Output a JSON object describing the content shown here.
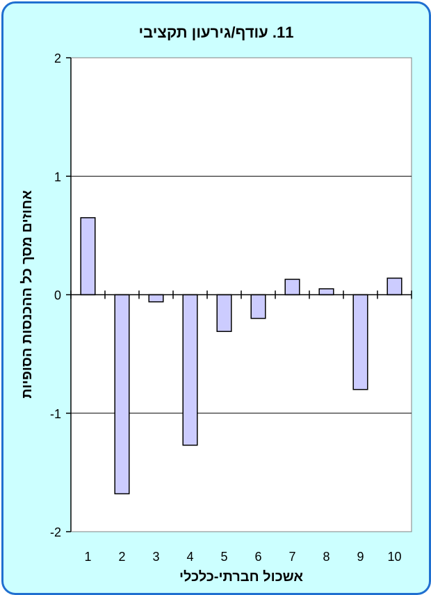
{
  "chart_data": {
    "type": "bar",
    "title": "11. עודף/גירעון תקציבי",
    "xlabel": "אשכול חברתי-כלכלי",
    "ylabel": "אחוזים מסך כל ההכנסות הסופיות",
    "categories": [
      "1",
      "2",
      "3",
      "4",
      "5",
      "6",
      "7",
      "8",
      "9",
      "10"
    ],
    "values": [
      0.65,
      -1.68,
      -0.06,
      -1.27,
      -0.31,
      -0.2,
      0.13,
      0.05,
      -0.8,
      0.14
    ],
    "ylim": [
      -2,
      2
    ],
    "yticks": [
      "2",
      "1",
      "0",
      "-1",
      "-2"
    ],
    "grid": true,
    "bar_color": "#ccccff",
    "plot_background": "#ffffff",
    "frame_background": "#ccffff",
    "frame_border_color": "#1f6fd0"
  }
}
